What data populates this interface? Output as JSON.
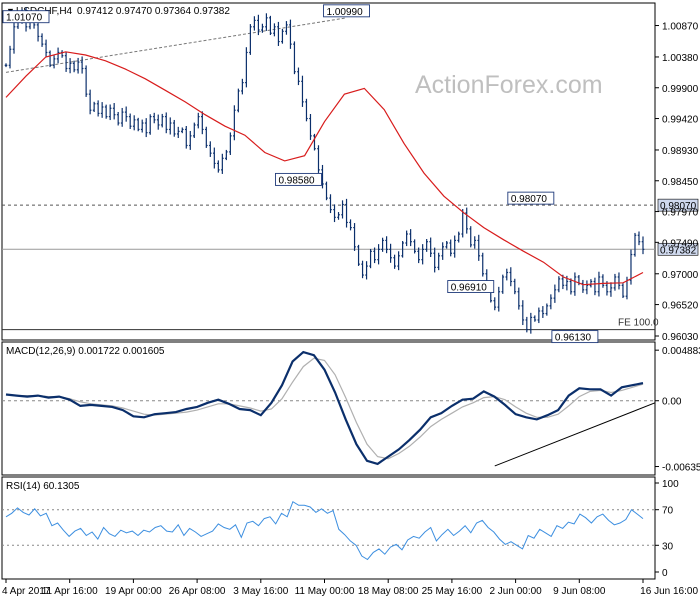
{
  "colors": {
    "candle": "#0b2f6b",
    "sma": "#d81c1c",
    "macd": "#0b2f6b",
    "signal": "#b0b0b0",
    "rsi": "#3d8fe0",
    "grid": "#888888",
    "label_fill": "#cfd9ee"
  },
  "header": {
    "arrow": "▼",
    "symbol": "USDCHF,H4",
    "ohlc": "0.97412 0.97470 0.97364 0.97382"
  },
  "watermark": "ActionForex.com",
  "chart_data": [
    {
      "type": "line",
      "name": "price",
      "ylim": [
        0.9603,
        1.0119
      ],
      "y_ticks": [
        "1.00870",
        "1.00380",
        "0.99900",
        "0.99420",
        "0.98930",
        "0.98450",
        "0.97970",
        "0.97490",
        "0.97000",
        "0.96520",
        "0.96030"
      ],
      "y_tick_values": [
        1.0087,
        1.0038,
        0.999,
        0.9942,
        0.9893,
        0.9845,
        0.9797,
        0.9749,
        0.97,
        0.9652,
        0.9603
      ],
      "reference_lines": [
        {
          "value": 0.9807,
          "label": "0.98070",
          "style": "dashed"
        },
        {
          "value": 0.9613,
          "label": "FE 100.0",
          "style": "solid"
        }
      ],
      "last_price": {
        "value": 0.97382,
        "label": "0.97382"
      },
      "annotations": [
        {
          "label": "1.01070",
          "x": 0,
          "y": 1.0107
        },
        {
          "label": "1.00990",
          "x": 85,
          "y": 1.0099
        },
        {
          "label": "0.98580",
          "x": 73,
          "y": 0.9858
        },
        {
          "label": "0.98070",
          "x": 131,
          "y": 0.9807
        },
        {
          "label": "0.96910",
          "x": 116,
          "y": 0.9691
        },
        {
          "label": "0.96130",
          "x": 142,
          "y": 0.9613
        }
      ],
      "trendline": {
        "points": [
          [
            0,
            1.0014
          ],
          [
            85,
            1.0099
          ]
        ],
        "style": "dashed"
      },
      "series": [
        {
          "values": [
            1.0025,
            1.005,
            1.0085,
            1.0095,
            1.0107,
            1.0085,
            1.0095,
            1.0088,
            1.007,
            1.0058,
            1.0045,
            1.0025,
            1.0035,
            1.0045,
            1.004,
            1.002,
            1.0028,
            1.0018,
            1.003,
            1.002,
            0.998,
            0.9955,
            0.9965,
            0.995,
            0.996,
            0.9945,
            0.9958,
            0.9948,
            0.9935,
            0.9952,
            0.9945,
            0.993,
            0.994,
            0.9925,
            0.9935,
            0.992,
            0.9945,
            0.994,
            0.9932,
            0.9945,
            0.9925,
            0.9935,
            0.9918,
            0.9922,
            0.9925,
            0.99,
            0.9915,
            0.9932,
            0.9945,
            0.9925,
            0.99,
            0.9888,
            0.9872,
            0.9862,
            0.988,
            0.989,
            0.9915,
            0.9955,
            0.9985,
            0.9998,
            1.0045,
            1.0085,
            1.0095,
            1.008,
            1.0085,
            1.0099,
            1.0075,
            1.0085,
            1.0062,
            1.0078,
            1.0088,
            1.0058,
            1.0015,
            1.0,
            0.9968,
            0.9942,
            0.9915,
            0.9895,
            0.9862,
            0.984,
            0.9818,
            0.98,
            0.9788,
            0.9792,
            0.9808,
            0.978,
            0.9772,
            0.9742,
            0.9715,
            0.9698,
            0.9712,
            0.9735,
            0.9722,
            0.9738,
            0.9752,
            0.9738,
            0.9725,
            0.9712,
            0.9728,
            0.9748,
            0.9762,
            0.975,
            0.9735,
            0.9722,
            0.9738,
            0.975,
            0.9732,
            0.971,
            0.9728,
            0.9742,
            0.9748,
            0.9732,
            0.9752,
            0.9762,
            0.9795,
            0.977,
            0.9745,
            0.9752,
            0.9728,
            0.97,
            0.9678,
            0.9658,
            0.9648,
            0.9672,
            0.9695,
            0.9702,
            0.9688,
            0.9672,
            0.965,
            0.9628,
            0.9613,
            0.9632,
            0.9628,
            0.9642,
            0.9638,
            0.965,
            0.9662,
            0.9675,
            0.9692,
            0.9682,
            0.9688,
            0.9672,
            0.9695,
            0.9685,
            0.9675,
            0.9682,
            0.9688,
            0.9672,
            0.9695,
            0.9682,
            0.9672,
            0.9678,
            0.9695,
            0.9682,
            0.9665,
            0.969,
            0.973,
            0.976,
            0.975,
            0.9738
          ]
        },
        {
          "name": "SMA",
          "values": [
            0.9975,
            1.0008,
            1.0038,
            1.0046,
            1.0041,
            1.0032,
            1.0019,
            1.0004,
            0.9986,
            0.9968,
            0.9948,
            0.993,
            0.9916,
            0.9889,
            0.9876,
            0.9884,
            0.9937,
            0.998,
            0.9989,
            0.9956,
            0.9903,
            0.9857,
            0.9821,
            0.9795,
            0.9772,
            0.9753,
            0.9735,
            0.9718,
            0.9695,
            0.9683,
            0.9685,
            0.9686,
            0.9702
          ]
        }
      ]
    },
    {
      "type": "line",
      "name": "MACD(12,26,9)",
      "label": "MACD(12,26,9) 0.001722 0.001605",
      "ylim": [
        -0.0064,
        0.0049
      ],
      "y_ticks": [
        "0.004883",
        "0.00",
        "-0.006354"
      ],
      "y_tick_values": [
        0.004883,
        0.0,
        -0.006354
      ],
      "zero_line": 0.0,
      "trendline": {
        "points": [
          [
            122,
            -0.0063
          ],
          [
            160,
            -0.0002
          ]
        ]
      },
      "series": [
        {
          "name": "MACD",
          "values": [
            0.0006,
            0.0005,
            0.0004,
            0.0005,
            0.0003,
            0.0004,
            0.0001,
            -0.0005,
            -0.0004,
            -0.0005,
            -0.0006,
            -0.0009,
            -0.0015,
            -0.0016,
            -0.0013,
            -0.0012,
            -0.0011,
            -0.0008,
            -0.0006,
            -0.0002,
            0.0001,
            -0.0003,
            -0.0008,
            -0.0009,
            -0.0014,
            -0.0002,
            0.0015,
            0.0038,
            0.0047,
            0.0044,
            0.003,
            0.0008,
            -0.0018,
            -0.0042,
            -0.0058,
            -0.0061,
            -0.0054,
            -0.0047,
            -0.0038,
            -0.0028,
            -0.0016,
            -0.0012,
            -0.0005,
            0.0001,
            0.0002,
            0.0009,
            0.0004,
            -0.0004,
            -0.0013,
            -0.0016,
            -0.0018,
            -0.0014,
            -0.0009,
            0.0005,
            0.0012,
            0.0011,
            0.0011,
            0.0005,
            0.0013,
            0.0015,
            0.0017
          ]
        },
        {
          "name": "Signal",
          "values": [
            0.0006,
            0.0005,
            0.0005,
            0.0005,
            0.0004,
            0.0004,
            0.0002,
            -0.0001,
            -0.0003,
            -0.0004,
            -0.0005,
            -0.0007,
            -0.001,
            -0.0013,
            -0.0014,
            -0.0013,
            -0.0012,
            -0.0011,
            -0.0009,
            -0.0006,
            -0.0003,
            -0.0003,
            -0.0005,
            -0.0007,
            -0.001,
            -0.0008,
            0.0002,
            0.0018,
            0.0033,
            0.0041,
            0.0039,
            0.0025,
            0.0003,
            -0.0021,
            -0.0042,
            -0.0054,
            -0.0056,
            -0.0051,
            -0.0044,
            -0.0035,
            -0.0025,
            -0.0018,
            -0.0012,
            -0.0006,
            -0.0002,
            0.0003,
            0.0004,
            0.0001,
            -0.0006,
            -0.0012,
            -0.0016,
            -0.0016,
            -0.0013,
            -0.0005,
            0.0004,
            0.0009,
            0.001,
            0.0008,
            0.001,
            0.0013,
            0.0016
          ]
        }
      ]
    },
    {
      "type": "line",
      "name": "RSI(14)",
      "label": "RSI(14) 60.1305",
      "ylim": [
        0,
        100
      ],
      "y_ticks": [
        "100",
        "70",
        "30",
        "0"
      ],
      "y_tick_values": [
        100,
        70,
        30,
        0
      ],
      "levels": [
        70,
        30
      ],
      "series": [
        {
          "name": "RSI",
          "values": [
            62,
            66,
            72,
            67,
            64,
            71,
            63,
            66,
            52,
            55,
            47,
            40,
            46,
            49,
            41,
            45,
            37,
            50,
            43,
            40,
            47,
            44,
            46,
            41,
            47,
            45,
            50,
            52,
            46,
            45,
            53,
            41,
            49,
            45,
            40,
            43,
            46,
            54,
            50,
            48,
            53,
            39,
            55,
            57,
            52,
            60,
            62,
            54,
            66,
            62,
            79,
            75,
            75,
            73,
            67,
            71,
            66,
            69,
            48,
            42,
            35,
            30,
            18,
            14,
            22,
            26,
            20,
            28,
            31,
            25,
            36,
            40,
            38,
            45,
            50,
            35,
            42,
            48,
            41,
            46,
            52,
            44,
            55,
            58,
            50,
            45,
            37,
            31,
            34,
            30,
            26,
            41,
            38,
            48,
            44,
            40,
            52,
            49,
            56,
            54,
            65,
            61,
            55,
            62,
            65,
            58,
            53,
            55,
            59,
            70,
            65,
            60
          ]
        }
      ]
    }
  ],
  "x_axis": {
    "labels": [
      "4 Apr 2017",
      "11 Apr 16:00",
      "19 Apr 00:00",
      "26 Apr 08:00",
      "3 May 16:00",
      "11 May 00:00",
      "18 May 08:00",
      "25 May 16:00",
      "2 Jun 00:00",
      "9 Jun 08:00",
      "16 Jun 16:00"
    ]
  }
}
